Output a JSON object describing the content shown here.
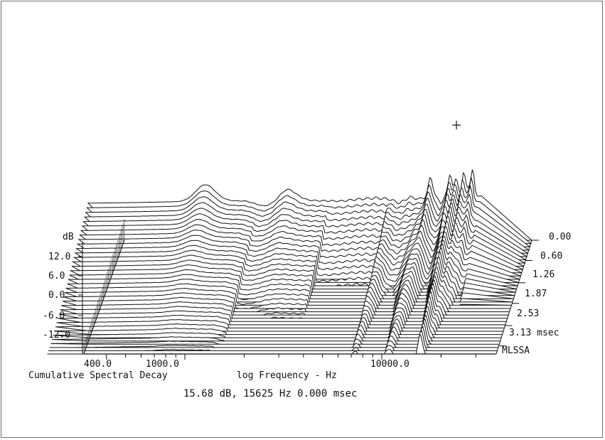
{
  "chart_data": {
    "type": "waterfall",
    "title": "Cumulative Spectral Decay",
    "xlabel": "log Frequency - Hz",
    "ylabel": "dB",
    "zlabel": "msec",
    "brand": "MLSSA",
    "cursor_readout": "15.68 dB, 15625 Hz  0.000 msec",
    "x_scale": "log",
    "x_ticks": [
      "400.0",
      "1000.0",
      "10000.0"
    ],
    "y_ticks": [
      "12.0",
      "6.0",
      "0.0",
      "-6.0",
      "-12.0"
    ],
    "time_ticks": [
      "0.00",
      "0.60",
      "1.26",
      "1.87",
      "2.53",
      "3.13 msec"
    ],
    "time_values_msec": [
      0.0,
      0.6,
      1.26,
      1.87,
      2.53,
      3.13
    ],
    "ylim": [
      -15,
      15
    ],
    "slice_count": 36,
    "cursor": {
      "db": 15.68,
      "hz": 15625,
      "msec": 0.0
    },
    "first_slice": {
      "note": "approximate first-slice response read from the plot",
      "hz": [
        200,
        300,
        400,
        500,
        700,
        1000,
        1300,
        1600,
        2000,
        2500,
        3000,
        4000,
        5000,
        6000,
        7000,
        8000,
        9000,
        10000,
        11000,
        12000,
        13000,
        14000,
        15000,
        15625,
        16500,
        17500,
        18500,
        19500,
        20500
      ],
      "db": [
        3.0,
        3.2,
        3.4,
        3.6,
        3.8,
        4.2,
        4.0,
        1.5,
        2.0,
        4.5,
        4.2,
        4.0,
        5.0,
        5.5,
        5.0,
        3.0,
        6.0,
        5.0,
        6.0,
        7.0,
        3.0,
        8.0,
        9.0,
        15.68,
        5.0,
        10.0,
        12.0,
        8.0,
        6.0
      ]
    }
  },
  "colors": {
    "ink": "#111111",
    "frame": "#6e6e6e",
    "background": "#ffffff"
  }
}
